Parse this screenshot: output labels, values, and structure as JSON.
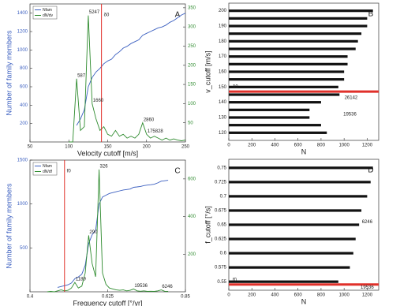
{
  "chart_data": [
    {
      "type": "line",
      "panel": "A",
      "xlabel": "Velocity cutoff [m/s]",
      "ylabel": "Number of family members",
      "xlim": [
        50,
        250
      ],
      "xticks": [
        50,
        100,
        150,
        200,
        250
      ],
      "ylim": [
        0,
        1500
      ],
      "yticks": [
        200,
        400,
        600,
        800,
        1000,
        1200,
        1400
      ],
      "y2lim": [
        0,
        360
      ],
      "y2ticks": [
        50,
        100,
        150,
        200,
        250,
        300,
        350
      ],
      "x": [
        100,
        105,
        110,
        115,
        120,
        125,
        130,
        135,
        140,
        145,
        150,
        155,
        160,
        165,
        170,
        175,
        180,
        185,
        190,
        195,
        200,
        205,
        210,
        215,
        220,
        225,
        230,
        235,
        240,
        245,
        250
      ],
      "series": [
        {
          "name": "Nfam",
          "color": "#3b5fc0",
          "values": [
            null,
            null,
            180,
            250,
            350,
            600,
            700,
            760,
            800,
            850,
            880,
            900,
            950,
            980,
            1020,
            1040,
            1070,
            1090,
            1110,
            1160,
            1180,
            1200,
            1220,
            1240,
            1250,
            1270,
            1300,
            1320,
            1350,
            1380,
            1400
          ]
        },
        {
          "name": "dN/dv",
          "color": "#2e8b2e",
          "axis": "y2",
          "values": [
            0,
            0,
            165,
            30,
            40,
            330,
            100,
            60,
            30,
            40,
            20,
            15,
            30,
            15,
            20,
            10,
            15,
            10,
            20,
            50,
            20,
            10,
            15,
            10,
            5,
            10,
            5,
            8,
            5,
            3,
            5
          ]
        }
      ],
      "vline": {
        "x": 142,
        "label": "δ0",
        "color": "#e0302a"
      },
      "annotations": [
        {
          "text": "587",
          "x": 110
        },
        {
          "text": "5247",
          "x": 125
        },
        {
          "text": "1660",
          "x": 130
        },
        {
          "text": "2860",
          "x": 195
        },
        {
          "text": "175828",
          "x": 200
        }
      ],
      "legend": "upper left"
    },
    {
      "type": "bar",
      "panel": "B",
      "xlabel": "N",
      "ylabel": "v_cutoff [m/s]",
      "xlim": [
        0,
        1300
      ],
      "xticks": [
        0,
        200,
        400,
        600,
        800,
        1000,
        1200
      ],
      "ylim": [
        115,
        205
      ],
      "yticks": [
        120,
        130,
        140,
        150,
        160,
        170,
        180,
        190,
        200
      ],
      "y": [
        120,
        125,
        130,
        135,
        140,
        145,
        150,
        155,
        160,
        165,
        170,
        175,
        180,
        185,
        190,
        195,
        200
      ],
      "values": [
        850,
        800,
        700,
        700,
        800,
        960,
        950,
        1000,
        1000,
        1030,
        1030,
        1100,
        1120,
        1150,
        1200,
        1200,
        1250
      ],
      "color": "#111111",
      "hline": {
        "y": 147,
        "label": "δ0",
        "color": "#e0302a"
      },
      "annotations": [
        {
          "text": "26142",
          "x": 1060,
          "y": 143
        },
        {
          "text": "19536",
          "x": 1050,
          "y": 132
        }
      ]
    },
    {
      "type": "line",
      "panel": "C",
      "xlabel": "Frequency cutoff [°/yr]",
      "ylabel": "Number of family members",
      "xlim": [
        0.4,
        0.85
      ],
      "xticks": [
        0.4,
        0.625,
        0.85
      ],
      "ylim": [
        0,
        1500
      ],
      "yticks": [
        500,
        1000,
        1500
      ],
      "y2lim": [
        0,
        700
      ],
      "y2ticks": [
        200,
        400,
        600
      ],
      "x": [
        0.45,
        0.46,
        0.47,
        0.48,
        0.49,
        0.5,
        0.51,
        0.52,
        0.53,
        0.54,
        0.55,
        0.56,
        0.57,
        0.58,
        0.59,
        0.6,
        0.61,
        0.62,
        0.63,
        0.64,
        0.65,
        0.66,
        0.67,
        0.68,
        0.69,
        0.7,
        0.71,
        0.72,
        0.73,
        0.74,
        0.75,
        0.76,
        0.77,
        0.78,
        0.79,
        0.8
      ],
      "series": [
        {
          "name": "Nfam",
          "color": "#3b5fc0",
          "values": [
            null,
            null,
            null,
            50,
            60,
            70,
            80,
            100,
            150,
            170,
            200,
            300,
            550,
            650,
            700,
            1000,
            1080,
            1100,
            1120,
            1130,
            1140,
            1150,
            1160,
            1165,
            1170,
            1190,
            1195,
            1200,
            1210,
            1215,
            1220,
            1225,
            1240,
            1260,
            1265,
            1270
          ]
        },
        {
          "name": "dN/df",
          "color": "#2e8b2e",
          "axis": "y2",
          "values": [
            0,
            2,
            0,
            5,
            10,
            5,
            8,
            20,
            50,
            20,
            30,
            100,
            300,
            150,
            80,
            650,
            100,
            40,
            20,
            15,
            10,
            8,
            10,
            5,
            8,
            15,
            5,
            3,
            5,
            2,
            3,
            2,
            5,
            10,
            3,
            2
          ]
        }
      ],
      "vline": {
        "x": 0.5,
        "label": "f0",
        "color": "#e0302a"
      },
      "annotations": [
        {
          "text": "1189",
          "x": 0.53
        },
        {
          "text": "290",
          "x": 0.57
        },
        {
          "text": "326",
          "x": 0.6
        },
        {
          "text": "19536",
          "x": 0.7
        },
        {
          "text": "6246",
          "x": 0.78
        }
      ],
      "legend": "upper left"
    },
    {
      "type": "bar",
      "panel": "D",
      "xlabel": "N",
      "ylabel": "f_cutoff [°/s]",
      "xlim": [
        0,
        1300
      ],
      "xticks": [
        0,
        200,
        400,
        600,
        800,
        1000,
        1200
      ],
      "ylim": [
        0.535,
        0.765
      ],
      "yticks": [
        0.55,
        0.575,
        0.6,
        0.625,
        0.65,
        0.675,
        0.7,
        0.725,
        0.75
      ],
      "y": [
        0.55,
        0.575,
        0.6,
        0.625,
        0.65,
        0.675,
        0.7,
        0.725,
        0.75
      ],
      "values": [
        950,
        1050,
        1080,
        1100,
        1130,
        1150,
        1200,
        1230,
        1250
      ],
      "color": "#111111",
      "hline": {
        "y": 0.545,
        "label": "f0",
        "color": "#e0302a"
      },
      "annotations": [
        {
          "text": "6246",
          "x": 1200,
          "y": 0.655
        },
        {
          "text": "19536",
          "x": 1200,
          "y": 0.54
        }
      ]
    }
  ]
}
